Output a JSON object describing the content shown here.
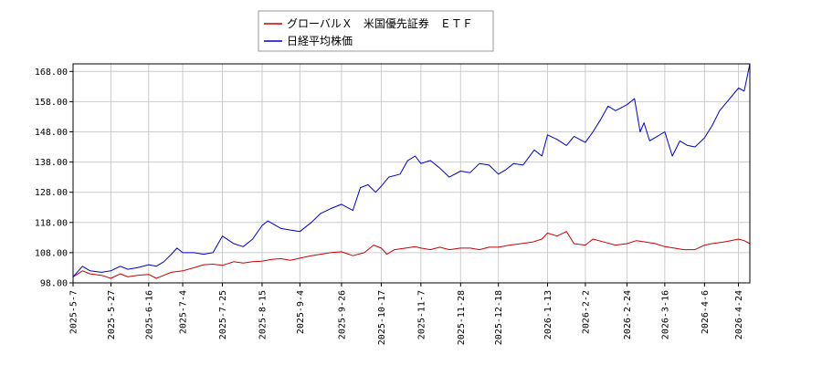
{
  "chart_data": {
    "type": "line",
    "title": "",
    "xlabel": "",
    "ylabel": "",
    "ylim": [
      98.0,
      170.5
    ],
    "grid": true,
    "legend_position": "top-center",
    "y_ticks": [
      "98.00",
      "108.00",
      "118.00",
      "128.00",
      "138.00",
      "148.00",
      "158.00",
      "168.00"
    ],
    "x_ticks": [
      "2025-5-7",
      "2025-5-27",
      "2025-6-16",
      "2025-7-4",
      "2025-7-25",
      "2025-8-15",
      "2025-9-4",
      "2025-9-26",
      "2025-10-17",
      "2025-11-7",
      "2025-11-28",
      "2025-12-18",
      "2026-1-13",
      "2026-2-2",
      "2026-2-24",
      "2026-3-16",
      "2026-4-6",
      "2026-4-24"
    ],
    "series": [
      {
        "name": "グローバルＸ　米国優先証券　ＥＴＦ",
        "color": "#cc0000",
        "points": [
          [
            "2025-5-7",
            100.0
          ],
          [
            "2025-5-12",
            102.0
          ],
          [
            "2025-5-16",
            101.0
          ],
          [
            "2025-5-22",
            100.5
          ],
          [
            "2025-5-27",
            99.5
          ],
          [
            "2025-6-1",
            101.0
          ],
          [
            "2025-6-5",
            100.0
          ],
          [
            "2025-6-10",
            100.5
          ],
          [
            "2025-6-16",
            100.8
          ],
          [
            "2025-6-20",
            99.5
          ],
          [
            "2025-6-24",
            100.5
          ],
          [
            "2025-6-28",
            101.5
          ],
          [
            "2025-7-4",
            102.0
          ],
          [
            "2025-7-10",
            103.0
          ],
          [
            "2025-7-15",
            104.0
          ],
          [
            "2025-7-20",
            104.2
          ],
          [
            "2025-7-25",
            103.8
          ],
          [
            "2025-7-31",
            105.0
          ],
          [
            "2025-8-5",
            104.6
          ],
          [
            "2025-8-10",
            105.0
          ],
          [
            "2025-8-15",
            105.2
          ],
          [
            "2025-8-20",
            105.8
          ],
          [
            "2025-8-25",
            106.0
          ],
          [
            "2025-8-30",
            105.5
          ],
          [
            "2025-9-4",
            106.2
          ],
          [
            "2025-9-10",
            107.0
          ],
          [
            "2025-9-15",
            107.5
          ],
          [
            "2025-9-20",
            108.0
          ],
          [
            "2025-9-26",
            108.3
          ],
          [
            "2025-10-2",
            107.0
          ],
          [
            "2025-10-8",
            108.0
          ],
          [
            "2025-10-13",
            110.5
          ],
          [
            "2025-10-17",
            109.5
          ],
          [
            "2025-10-20",
            107.5
          ],
          [
            "2025-10-24",
            109.0
          ],
          [
            "2025-10-30",
            109.5
          ],
          [
            "2025-11-4",
            110.0
          ],
          [
            "2025-11-7",
            109.5
          ],
          [
            "2025-11-12",
            109.0
          ],
          [
            "2025-11-17",
            109.8
          ],
          [
            "2025-11-22",
            109.0
          ],
          [
            "2025-11-28",
            109.5
          ],
          [
            "2025-12-3",
            109.5
          ],
          [
            "2025-12-8",
            109.0
          ],
          [
            "2025-12-13",
            109.8
          ],
          [
            "2025-12-18",
            109.8
          ],
          [
            "2025-12-24",
            110.5
          ],
          [
            "2025-12-30",
            111.0
          ],
          [
            "2026-1-5",
            111.5
          ],
          [
            "2026-1-10",
            112.5
          ],
          [
            "2026-1-13",
            114.5
          ],
          [
            "2026-1-18",
            113.5
          ],
          [
            "2026-1-23",
            115.0
          ],
          [
            "2026-1-27",
            111.0
          ],
          [
            "2026-2-2",
            110.5
          ],
          [
            "2026-2-6",
            112.5
          ],
          [
            "2026-2-12",
            111.5
          ],
          [
            "2026-2-18",
            110.5
          ],
          [
            "2026-2-24",
            111.0
          ],
          [
            "2026-3-1",
            112.0
          ],
          [
            "2026-3-6",
            111.5
          ],
          [
            "2026-3-11",
            111.0
          ],
          [
            "2026-3-16",
            110.0
          ],
          [
            "2026-3-21",
            109.5
          ],
          [
            "2026-3-26",
            109.0
          ],
          [
            "2026-4-1",
            109.0
          ],
          [
            "2026-4-6",
            110.5
          ],
          [
            "2026-4-10",
            111.0
          ],
          [
            "2026-4-16",
            111.5
          ],
          [
            "2026-4-20",
            112.0
          ],
          [
            "2026-4-24",
            112.5
          ],
          [
            "2026-4-27",
            112.0
          ],
          [
            "2026-4-30",
            111.0
          ]
        ]
      },
      {
        "name": "日経平均株価",
        "color": "#0000cc",
        "points": [
          [
            "2025-5-7",
            100.0
          ],
          [
            "2025-5-12",
            103.5
          ],
          [
            "2025-5-16",
            102.0
          ],
          [
            "2025-5-22",
            101.5
          ],
          [
            "2025-5-27",
            102.0
          ],
          [
            "2025-6-1",
            103.5
          ],
          [
            "2025-6-5",
            102.5
          ],
          [
            "2025-6-10",
            103.0
          ],
          [
            "2025-6-16",
            104.0
          ],
          [
            "2025-6-20",
            103.5
          ],
          [
            "2025-6-24",
            105.0
          ],
          [
            "2025-6-28",
            107.5
          ],
          [
            "2025-7-1",
            109.5
          ],
          [
            "2025-7-4",
            108.0
          ],
          [
            "2025-7-10",
            108.0
          ],
          [
            "2025-7-15",
            107.5
          ],
          [
            "2025-7-20",
            108.0
          ],
          [
            "2025-7-25",
            113.5
          ],
          [
            "2025-7-31",
            111.0
          ],
          [
            "2025-8-5",
            110.0
          ],
          [
            "2025-8-10",
            112.5
          ],
          [
            "2025-8-15",
            117.0
          ],
          [
            "2025-8-18",
            118.5
          ],
          [
            "2025-8-25",
            116.0
          ],
          [
            "2025-8-30",
            115.5
          ],
          [
            "2025-9-4",
            115.0
          ],
          [
            "2025-9-10",
            118.0
          ],
          [
            "2025-9-15",
            121.0
          ],
          [
            "2025-9-20",
            122.5
          ],
          [
            "2025-9-26",
            124.0
          ],
          [
            "2025-10-2",
            122.0
          ],
          [
            "2025-10-6",
            129.5
          ],
          [
            "2025-10-10",
            130.5
          ],
          [
            "2025-10-14",
            128.0
          ],
          [
            "2025-10-17",
            130.0
          ],
          [
            "2025-10-21",
            133.0
          ],
          [
            "2025-10-27",
            134.0
          ],
          [
            "2025-10-31",
            138.5
          ],
          [
            "2025-11-4",
            140.0
          ],
          [
            "2025-11-7",
            137.5
          ],
          [
            "2025-11-12",
            138.5
          ],
          [
            "2025-11-17",
            136.0
          ],
          [
            "2025-11-22",
            133.0
          ],
          [
            "2025-11-28",
            135.0
          ],
          [
            "2025-12-3",
            134.5
          ],
          [
            "2025-12-8",
            137.5
          ],
          [
            "2025-12-13",
            137.0
          ],
          [
            "2025-12-18",
            134.0
          ],
          [
            "2025-12-22",
            135.5
          ],
          [
            "2025-12-26",
            137.5
          ],
          [
            "2025-12-31",
            137.0
          ],
          [
            "2026-1-6",
            142.0
          ],
          [
            "2026-1-10",
            140.0
          ],
          [
            "2026-1-13",
            147.0
          ],
          [
            "2026-1-18",
            145.5
          ],
          [
            "2026-1-23",
            143.5
          ],
          [
            "2026-1-27",
            146.5
          ],
          [
            "2026-2-2",
            144.5
          ],
          [
            "2026-2-6",
            148.0
          ],
          [
            "2026-2-10",
            152.0
          ],
          [
            "2026-2-14",
            156.5
          ],
          [
            "2026-2-18",
            155.0
          ],
          [
            "2026-2-24",
            157.0
          ],
          [
            "2026-2-28",
            159.0
          ],
          [
            "2026-3-3",
            148.0
          ],
          [
            "2026-3-5",
            151.0
          ],
          [
            "2026-3-8",
            145.0
          ],
          [
            "2026-3-12",
            146.5
          ],
          [
            "2026-3-16",
            148.0
          ],
          [
            "2026-3-20",
            140.0
          ],
          [
            "2026-3-24",
            145.0
          ],
          [
            "2026-3-28",
            143.5
          ],
          [
            "2026-4-1",
            143.0
          ],
          [
            "2026-4-6",
            146.0
          ],
          [
            "2026-4-10",
            150.0
          ],
          [
            "2026-4-14",
            155.0
          ],
          [
            "2026-4-18",
            158.0
          ],
          [
            "2026-4-24",
            162.5
          ],
          [
            "2026-4-27",
            161.5
          ],
          [
            "2026-4-30",
            170.5
          ]
        ]
      }
    ]
  }
}
